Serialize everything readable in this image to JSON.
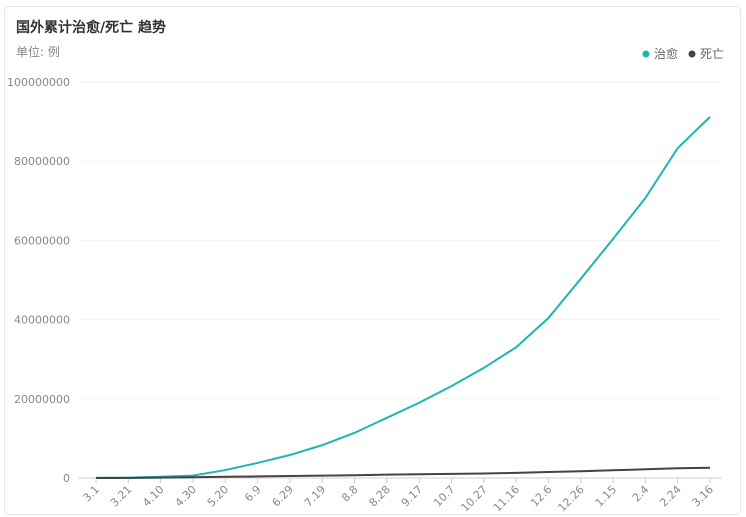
{
  "chart_data": {
    "type": "line",
    "title": "国外累计治愈/死亡 趋势",
    "subtitle": "单位: 例",
    "categories": [
      "3.1",
      "3.21",
      "4.10",
      "4.30",
      "5.20",
      "6.9",
      "6.29",
      "7.19",
      "8.8",
      "8.28",
      "9.17",
      "10.7",
      "10.27",
      "11.16",
      "12.6",
      "12.26",
      "1.15",
      "2.4",
      "2.24",
      "3.16"
    ],
    "series": [
      {
        "name": "治愈",
        "color": "#1fb5b2",
        "values": [
          50000,
          100000,
          300000,
          600000,
          2000000,
          3800000,
          5800000,
          8300000,
          11400000,
          15200000,
          19000000,
          23200000,
          27800000,
          33000000,
          40400000,
          50300000,
          60400000,
          70700000,
          83300000,
          91200000
        ]
      },
      {
        "name": "死亡",
        "color": "#444444",
        "values": [
          0,
          10000,
          100000,
          200000,
          300000,
          400000,
          500000,
          600000,
          700000,
          850000,
          950000,
          1050000,
          1150000,
          1300000,
          1500000,
          1700000,
          1950000,
          2200000,
          2450000,
          2600000
        ]
      }
    ],
    "ylim": [
      0,
      100000000
    ],
    "yticks": [
      0,
      20000000,
      40000000,
      60000000,
      80000000,
      100000000
    ],
    "grid": true,
    "legend": "top-right"
  }
}
